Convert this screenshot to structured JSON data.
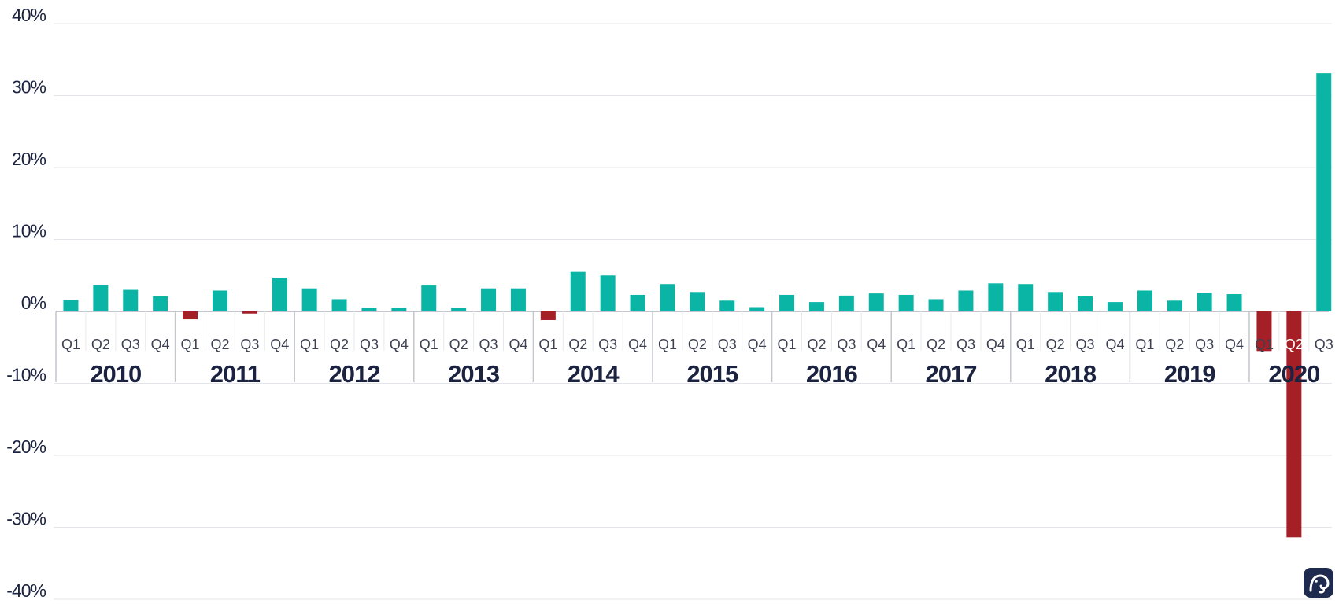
{
  "chart_data": {
    "type": "bar",
    "title": "",
    "xlabel": "",
    "ylabel": "",
    "ylim": [
      -40,
      40
    ],
    "y_ticks": [
      40,
      30,
      20,
      10,
      0,
      -10,
      -20,
      -30,
      -40
    ],
    "y_tick_labels": [
      "40%",
      "30%",
      "20%",
      "10%",
      "0%",
      "-10%",
      "-20%",
      "-30%",
      "-40%"
    ],
    "grid": true,
    "positive_color": "#0bb5a6",
    "negative_color": "#a41f26",
    "years": [
      {
        "year": "2010",
        "quarters": [
          "Q1",
          "Q2",
          "Q3",
          "Q4"
        ],
        "values": [
          1.6,
          3.7,
          3.0,
          2.1
        ]
      },
      {
        "year": "2011",
        "quarters": [
          "Q1",
          "Q2",
          "Q3",
          "Q4"
        ],
        "values": [
          -1.1,
          2.9,
          -0.3,
          4.7
        ]
      },
      {
        "year": "2012",
        "quarters": [
          "Q1",
          "Q2",
          "Q3",
          "Q4"
        ],
        "values": [
          3.2,
          1.7,
          0.5,
          0.5
        ]
      },
      {
        "year": "2013",
        "quarters": [
          "Q1",
          "Q2",
          "Q3",
          "Q4"
        ],
        "values": [
          3.6,
          0.5,
          3.2,
          3.2
        ]
      },
      {
        "year": "2014",
        "quarters": [
          "Q1",
          "Q2",
          "Q3",
          "Q4"
        ],
        "values": [
          -1.2,
          5.5,
          5.0,
          2.3
        ]
      },
      {
        "year": "2015",
        "quarters": [
          "Q1",
          "Q2",
          "Q3",
          "Q4"
        ],
        "values": [
          3.8,
          2.7,
          1.5,
          0.6
        ]
      },
      {
        "year": "2016",
        "quarters": [
          "Q1",
          "Q2",
          "Q3",
          "Q4"
        ],
        "values": [
          2.3,
          1.3,
          2.2,
          2.5
        ]
      },
      {
        "year": "2017",
        "quarters": [
          "Q1",
          "Q2",
          "Q3",
          "Q4"
        ],
        "values": [
          2.3,
          1.7,
          2.9,
          3.9
        ]
      },
      {
        "year": "2018",
        "quarters": [
          "Q1",
          "Q2",
          "Q3",
          "Q4"
        ],
        "values": [
          3.8,
          2.7,
          2.1,
          1.3
        ]
      },
      {
        "year": "2019",
        "quarters": [
          "Q1",
          "Q2",
          "Q3",
          "Q4"
        ],
        "values": [
          2.9,
          1.5,
          2.6,
          2.4
        ]
      },
      {
        "year": "2020",
        "quarters": [
          "Q1",
          "Q2",
          "Q3"
        ],
        "values": [
          -5.5,
          -31.4,
          33.1
        ]
      }
    ]
  },
  "logo": {
    "name": "elephant-logo",
    "color": "#1e2a4e"
  }
}
